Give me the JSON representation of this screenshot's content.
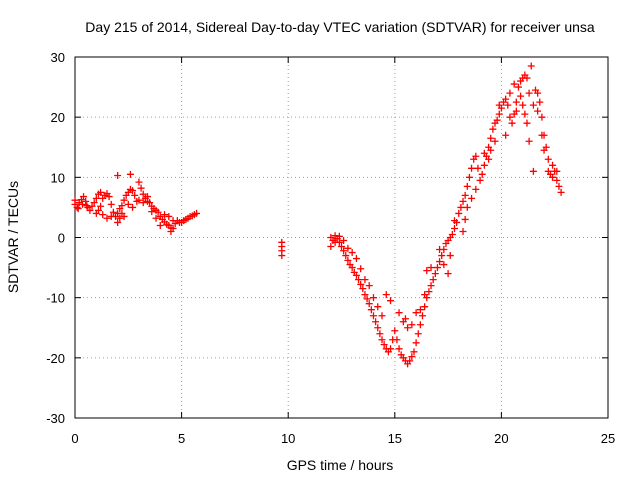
{
  "chart_data": {
    "type": "scatter",
    "title": "Day 215 of 2014, Sidereal Day-to-day VTEC variation (SDTVAR) for receiver unsa",
    "xlabel": "GPS time / hours",
    "ylabel": "SDTVAR / TECUs",
    "xlim": [
      0,
      25
    ],
    "ylim": [
      -30,
      30
    ],
    "xticks": [
      0,
      5,
      10,
      15,
      20,
      25
    ],
    "yticks": [
      -30,
      -20,
      -10,
      0,
      10,
      20,
      30
    ],
    "xtick_labels": [
      "0",
      "5",
      "10",
      "15",
      "20",
      "25"
    ],
    "ytick_labels": [
      "-30",
      "-20",
      "-10",
      "0",
      "10",
      "20",
      "30"
    ],
    "grid": true,
    "marker": "+",
    "color": "#ff0000",
    "series": [
      {
        "name": "SDTVAR",
        "points": [
          [
            0.0,
            5.5
          ],
          [
            0.1,
            5.0
          ],
          [
            0.2,
            5.8
          ],
          [
            0.3,
            6.3
          ],
          [
            0.4,
            6.8
          ],
          [
            0.5,
            6.0
          ],
          [
            0.6,
            5.0
          ],
          [
            0.7,
            4.5
          ],
          [
            0.8,
            5.2
          ],
          [
            0.9,
            5.8
          ],
          [
            0.0,
            6.2
          ],
          [
            0.15,
            4.8
          ],
          [
            0.35,
            5.5
          ],
          [
            0.55,
            5.3
          ],
          [
            1.0,
            4.0
          ],
          [
            1.1,
            4.5
          ],
          [
            1.2,
            5.2
          ],
          [
            1.3,
            6.5
          ],
          [
            1.4,
            7.0
          ],
          [
            1.5,
            7.3
          ],
          [
            1.6,
            6.8
          ],
          [
            1.7,
            5.5
          ],
          [
            1.8,
            4.2
          ],
          [
            1.9,
            3.5
          ],
          [
            1.0,
            6.5
          ],
          [
            1.1,
            7.2
          ],
          [
            1.2,
            7.5
          ],
          [
            1.3,
            3.8
          ],
          [
            1.5,
            3.2
          ],
          [
            1.7,
            3.5
          ],
          [
            2.0,
            4.0
          ],
          [
            2.1,
            4.8
          ],
          [
            2.2,
            5.3
          ],
          [
            2.3,
            6.2
          ],
          [
            2.4,
            7.0
          ],
          [
            2.5,
            7.5
          ],
          [
            2.6,
            8.0
          ],
          [
            2.7,
            7.8
          ],
          [
            2.8,
            7.0
          ],
          [
            2.9,
            6.0
          ],
          [
            2.0,
            2.5
          ],
          [
            2.1,
            3.2
          ],
          [
            2.2,
            4.0
          ],
          [
            2.3,
            3.5
          ],
          [
            2.5,
            5.5
          ],
          [
            2.7,
            5.0
          ],
          [
            2.0,
            10.3
          ],
          [
            2.6,
            10.5
          ],
          [
            3.0,
            9.2
          ],
          [
            3.1,
            8.2
          ],
          [
            3.2,
            7.2
          ],
          [
            3.3,
            6.5
          ],
          [
            3.4,
            6.0
          ],
          [
            3.5,
            5.8
          ],
          [
            3.6,
            5.2
          ],
          [
            3.7,
            4.8
          ],
          [
            3.8,
            4.5
          ],
          [
            3.9,
            4.2
          ],
          [
            3.0,
            6.2
          ],
          [
            3.2,
            5.8
          ],
          [
            3.4,
            6.8
          ],
          [
            3.6,
            4.3
          ],
          [
            3.8,
            3.2
          ],
          [
            4.0,
            3.5
          ],
          [
            4.1,
            3.0
          ],
          [
            4.2,
            2.6
          ],
          [
            4.3,
            2.2
          ],
          [
            4.4,
            2.0
          ],
          [
            4.5,
            1.6
          ],
          [
            4.6,
            1.5
          ],
          [
            4.7,
            2.3
          ],
          [
            4.8,
            2.8
          ],
          [
            4.9,
            2.5
          ],
          [
            4.0,
            2.0
          ],
          [
            4.2,
            3.8
          ],
          [
            4.4,
            3.5
          ],
          [
            4.5,
            1.0
          ],
          [
            4.6,
            2.8
          ],
          [
            5.0,
            2.5
          ],
          [
            5.1,
            2.8
          ],
          [
            5.2,
            3.0
          ],
          [
            5.3,
            3.2
          ],
          [
            5.4,
            3.5
          ],
          [
            5.5,
            3.6
          ],
          [
            5.6,
            3.8
          ],
          [
            5.7,
            4.0
          ],
          [
            9.7,
            -0.8
          ],
          [
            9.7,
            -1.5
          ],
          [
            9.7,
            -2.2
          ],
          [
            9.7,
            -3.0
          ],
          [
            12.0,
            0.0
          ],
          [
            12.1,
            -0.5
          ],
          [
            12.2,
            0.3
          ],
          [
            12.3,
            -0.2
          ],
          [
            12.4,
            -0.8
          ],
          [
            12.5,
            -1.5
          ],
          [
            12.6,
            -2.2
          ],
          [
            12.7,
            -3.0
          ],
          [
            12.8,
            -3.8
          ],
          [
            12.9,
            -4.5
          ],
          [
            12.0,
            -1.5
          ],
          [
            12.2,
            -0.8
          ],
          [
            12.4,
            0.2
          ],
          [
            12.6,
            -0.5
          ],
          [
            12.8,
            -1.8
          ],
          [
            13.0,
            -5.0
          ],
          [
            13.1,
            -5.8
          ],
          [
            13.2,
            -6.3
          ],
          [
            13.3,
            -7.0
          ],
          [
            13.4,
            -7.8
          ],
          [
            13.5,
            -8.5
          ],
          [
            13.6,
            -9.5
          ],
          [
            13.7,
            -10.2
          ],
          [
            13.8,
            -11.0
          ],
          [
            13.9,
            -12.0
          ],
          [
            13.0,
            -2.5
          ],
          [
            13.2,
            -3.5
          ],
          [
            13.4,
            -5.2
          ],
          [
            13.6,
            -7.0
          ],
          [
            13.8,
            -8.0
          ],
          [
            14.0,
            -13.0
          ],
          [
            14.1,
            -14.0
          ],
          [
            14.2,
            -15.0
          ],
          [
            14.3,
            -16.0
          ],
          [
            14.4,
            -17.0
          ],
          [
            14.5,
            -17.8
          ],
          [
            14.6,
            -18.5
          ],
          [
            14.7,
            -19.0
          ],
          [
            14.8,
            -18.5
          ],
          [
            14.9,
            -17.0
          ],
          [
            14.0,
            -10.0
          ],
          [
            14.2,
            -11.5
          ],
          [
            14.4,
            -13.0
          ],
          [
            14.6,
            -9.5
          ],
          [
            14.8,
            -10.5
          ],
          [
            15.0,
            -15.5
          ],
          [
            15.1,
            -17.0
          ],
          [
            15.2,
            -18.5
          ],
          [
            15.3,
            -19.5
          ],
          [
            15.4,
            -20.0
          ],
          [
            15.5,
            -20.5
          ],
          [
            15.6,
            -21.0
          ],
          [
            15.7,
            -20.5
          ],
          [
            15.8,
            -19.8
          ],
          [
            15.9,
            -19.0
          ],
          [
            15.2,
            -12.5
          ],
          [
            15.4,
            -14.0
          ],
          [
            15.6,
            -15.0
          ],
          [
            15.8,
            -14.5
          ],
          [
            15.5,
            -13.5
          ],
          [
            16.0,
            -17.5
          ],
          [
            16.1,
            -16.0
          ],
          [
            16.2,
            -14.5
          ],
          [
            16.3,
            -13.0
          ],
          [
            16.4,
            -11.5
          ],
          [
            16.5,
            -10.0
          ],
          [
            16.6,
            -9.0
          ],
          [
            16.7,
            -8.0
          ],
          [
            16.8,
            -7.0
          ],
          [
            16.9,
            -6.0
          ],
          [
            16.0,
            -12.5
          ],
          [
            16.2,
            -12.0
          ],
          [
            16.4,
            -9.5
          ],
          [
            16.5,
            -5.5
          ],
          [
            16.7,
            -5.0
          ],
          [
            17.0,
            -5.0
          ],
          [
            17.1,
            -4.0
          ],
          [
            17.2,
            -3.0
          ],
          [
            17.3,
            -2.0
          ],
          [
            17.4,
            -1.0
          ],
          [
            17.5,
            -0.5
          ],
          [
            17.6,
            0.0
          ],
          [
            17.7,
            0.5
          ],
          [
            17.8,
            1.5
          ],
          [
            17.9,
            2.5
          ],
          [
            17.1,
            -2.0
          ],
          [
            17.3,
            -4.5
          ],
          [
            17.5,
            -6.0
          ],
          [
            17.6,
            -3.0
          ],
          [
            17.8,
            2.8
          ],
          [
            18.0,
            4.0
          ],
          [
            18.1,
            5.0
          ],
          [
            18.2,
            6.0
          ],
          [
            18.3,
            7.0
          ],
          [
            18.4,
            8.5
          ],
          [
            18.5,
            10.0
          ],
          [
            18.6,
            11.5
          ],
          [
            18.7,
            13.0
          ],
          [
            18.8,
            13.5
          ],
          [
            18.9,
            11.5
          ],
          [
            18.2,
            1.0
          ],
          [
            18.3,
            3.0
          ],
          [
            18.4,
            5.0
          ],
          [
            18.6,
            6.5
          ],
          [
            18.8,
            8.0
          ],
          [
            19.0,
            9.5
          ],
          [
            19.1,
            10.5
          ],
          [
            19.2,
            12.0
          ],
          [
            19.3,
            13.5
          ],
          [
            19.4,
            15.0
          ],
          [
            19.5,
            16.5
          ],
          [
            19.6,
            18.0
          ],
          [
            19.7,
            19.0
          ],
          [
            19.8,
            19.5
          ],
          [
            19.9,
            20.5
          ],
          [
            19.2,
            14.0
          ],
          [
            19.4,
            13.0
          ],
          [
            19.5,
            14.5
          ],
          [
            19.7,
            16.0
          ],
          [
            19.9,
            22.0
          ],
          [
            20.0,
            21.5
          ],
          [
            20.1,
            22.5
          ],
          [
            20.2,
            23.0
          ],
          [
            20.3,
            22.0
          ],
          [
            20.4,
            20.0
          ],
          [
            20.5,
            19.0
          ],
          [
            20.6,
            20.5
          ],
          [
            20.7,
            22.5
          ],
          [
            20.8,
            25.0
          ],
          [
            20.9,
            26.0
          ],
          [
            20.2,
            17.0
          ],
          [
            20.4,
            24.0
          ],
          [
            20.6,
            25.5
          ],
          [
            20.7,
            21.0
          ],
          [
            20.9,
            23.5
          ],
          [
            21.0,
            26.5
          ],
          [
            21.1,
            27.0
          ],
          [
            21.2,
            26.5
          ],
          [
            21.3,
            24.0
          ],
          [
            21.4,
            28.5
          ],
          [
            21.5,
            22.0
          ],
          [
            21.6,
            24.5
          ],
          [
            21.7,
            24.0
          ],
          [
            21.8,
            22.5
          ],
          [
            21.9,
            20.0
          ],
          [
            21.0,
            22.0
          ],
          [
            21.1,
            20.5
          ],
          [
            21.2,
            19.0
          ],
          [
            21.3,
            16.0
          ],
          [
            21.5,
            11.0
          ],
          [
            21.7,
            21.0
          ],
          [
            21.9,
            17.0
          ],
          [
            22.0,
            17.0
          ],
          [
            22.1,
            15.0
          ],
          [
            22.2,
            13.0
          ],
          [
            22.3,
            10.5
          ],
          [
            22.4,
            12.0
          ],
          [
            22.5,
            11.0
          ],
          [
            22.6,
            9.5
          ],
          [
            22.7,
            8.5
          ],
          [
            22.8,
            7.5
          ],
          [
            22.0,
            14.5
          ],
          [
            22.2,
            11.0
          ],
          [
            22.4,
            10.0
          ],
          [
            22.6,
            11.0
          ]
        ]
      }
    ]
  }
}
